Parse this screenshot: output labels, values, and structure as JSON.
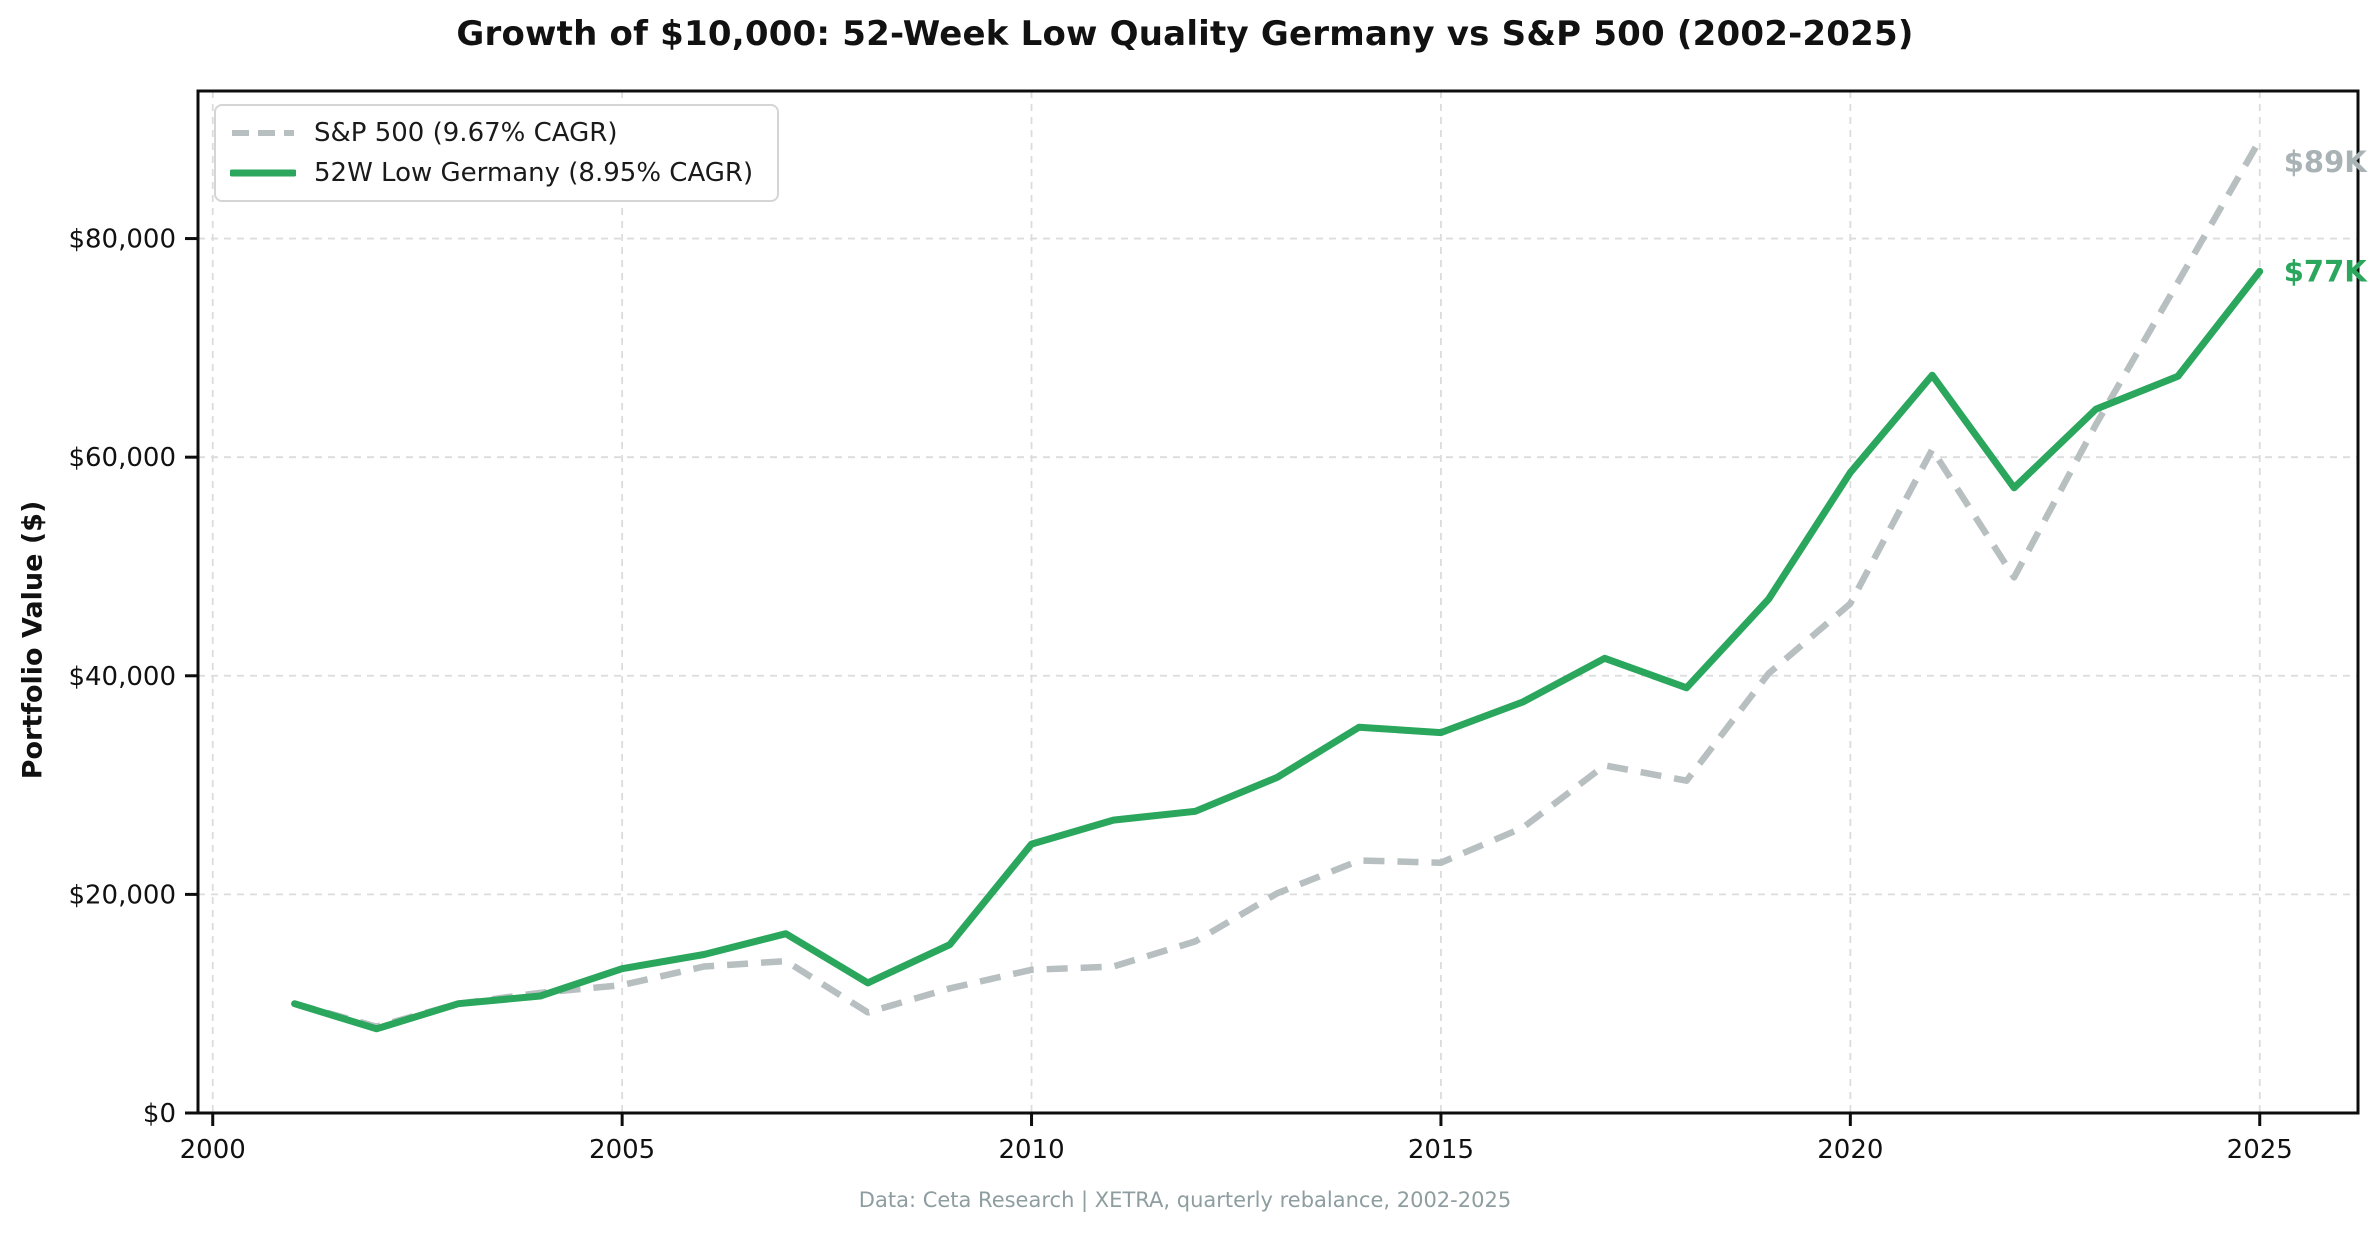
{
  "footer": {
    "text": "Data: Ceta Research | XETRA, quarterly rebalance, 2002-2025"
  },
  "chart_data": {
    "type": "line",
    "title": "Growth of $10,000: 52-Week Low Quality Germany vs S&P 500 (2002-2025)",
    "xlabel": "",
    "ylabel": "Portfolio Value ($)",
    "grid": true,
    "legend_position": "upper-left",
    "xlim": [
      1999.82,
      2026.2
    ],
    "ylim": [
      0,
      93500
    ],
    "xticks": [
      2000,
      2005,
      2010,
      2015,
      2020,
      2025
    ],
    "xtick_labels": [
      "2000",
      "2005",
      "2010",
      "2015",
      "2020",
      "2025"
    ],
    "yticks": [
      0,
      20000,
      40000,
      60000,
      80000
    ],
    "ytick_labels": [
      "$0",
      "$20,000",
      "$40,000",
      "$60,000",
      "$80,000"
    ],
    "x": [
      2001,
      2002,
      2003,
      2004,
      2005,
      2006,
      2007,
      2008,
      2009,
      2010,
      2011,
      2012,
      2013,
      2014,
      2015,
      2016,
      2017,
      2018,
      2019,
      2020,
      2021,
      2022,
      2023,
      2024,
      2025
    ],
    "series": [
      {
        "key": "sp500",
        "name": "S&P 500 (9.67% CAGR)",
        "color": "#b7bfc1",
        "label_color": "#a9b3b5",
        "style": "dashed",
        "end_label": "$89K",
        "values": [
          10000,
          7900,
          10000,
          11000,
          11700,
          13400,
          13900,
          9200,
          11400,
          13100,
          13400,
          15700,
          20100,
          23100,
          22900,
          26100,
          31800,
          30400,
          40200,
          46600,
          60700,
          49000,
          63000,
          76000,
          89000
        ]
      },
      {
        "key": "germany",
        "name": "52W Low Germany (8.95% CAGR)",
        "color": "#2aa65d",
        "label_color": "#2aa65d",
        "style": "solid",
        "end_label": "$77K",
        "values": [
          10000,
          7700,
          10000,
          10700,
          13200,
          14500,
          16400,
          11900,
          15400,
          24600,
          26800,
          27600,
          30700,
          35300,
          34800,
          37600,
          41600,
          38900,
          47000,
          58600,
          67500,
          57200,
          64400,
          67400,
          77000
        ]
      }
    ]
  }
}
